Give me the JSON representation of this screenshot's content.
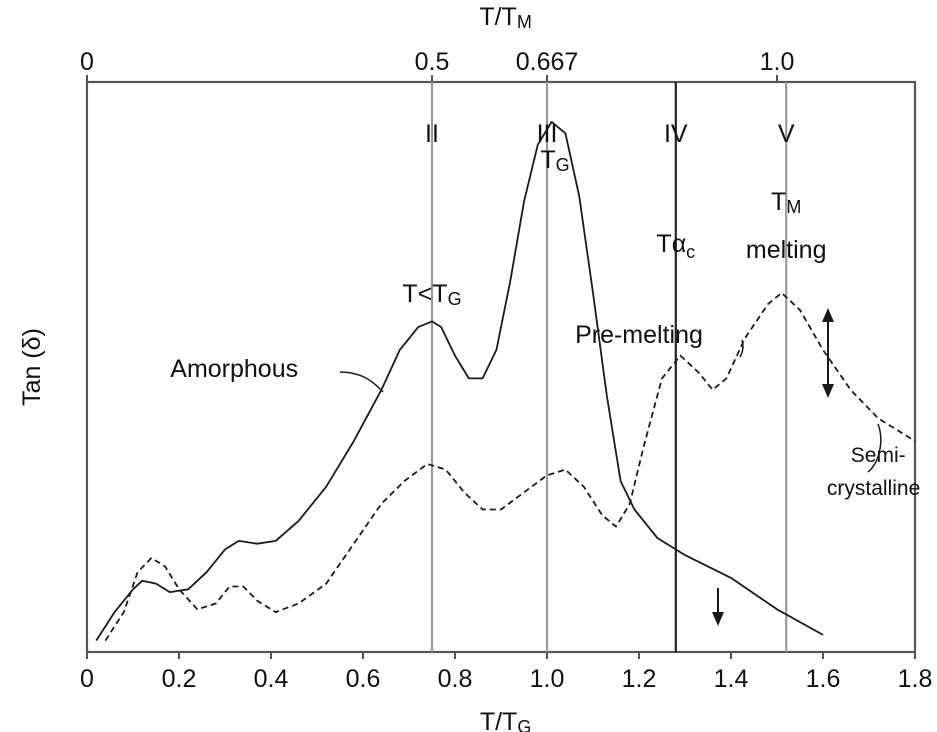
{
  "chart_data": {
    "type": "line",
    "title": "",
    "xlabel": "T/TG",
    "x2label": "T/TM",
    "ylabel": "Tan (δ)",
    "xlim": [
      0,
      1.8
    ],
    "x_ticks": [
      "0",
      "0.2",
      "0.4",
      "0.6",
      "0.8",
      "1.0",
      "1.2",
      "1.4",
      "1.6",
      "1.8"
    ],
    "x2_ticks": [
      {
        "label": "0",
        "at_x": 0
      },
      {
        "label": "0.5",
        "at_x": 0.75
      },
      {
        "label": "0.667",
        "at_x": 1.0
      },
      {
        "label": "1.0",
        "at_x": 1.5
      }
    ],
    "y_ticks_shown": false,
    "grid": false,
    "regions": [
      {
        "roman": "II",
        "x": 0.75
      },
      {
        "roman": "III",
        "sub": "TG",
        "x": 1.0
      },
      {
        "roman": "IV",
        "x": 1.28
      },
      {
        "roman": "V",
        "x": 1.52
      }
    ],
    "series": [
      {
        "name": "Amorphous",
        "style": "solid",
        "points": [
          [
            0.02,
            0.02
          ],
          [
            0.06,
            0.07
          ],
          [
            0.1,
            0.11
          ],
          [
            0.12,
            0.125
          ],
          [
            0.15,
            0.12
          ],
          [
            0.18,
            0.105
          ],
          [
            0.22,
            0.11
          ],
          [
            0.26,
            0.14
          ],
          [
            0.3,
            0.18
          ],
          [
            0.33,
            0.195
          ],
          [
            0.37,
            0.19
          ],
          [
            0.41,
            0.195
          ],
          [
            0.46,
            0.23
          ],
          [
            0.52,
            0.29
          ],
          [
            0.58,
            0.37
          ],
          [
            0.64,
            0.46
          ],
          [
            0.68,
            0.53
          ],
          [
            0.72,
            0.57
          ],
          [
            0.75,
            0.58
          ],
          [
            0.77,
            0.57
          ],
          [
            0.8,
            0.52
          ],
          [
            0.83,
            0.48
          ],
          [
            0.86,
            0.48
          ],
          [
            0.89,
            0.53
          ],
          [
            0.92,
            0.65
          ],
          [
            0.95,
            0.79
          ],
          [
            0.98,
            0.89
          ],
          [
            1.01,
            0.93
          ],
          [
            1.04,
            0.91
          ],
          [
            1.07,
            0.8
          ],
          [
            1.1,
            0.63
          ],
          [
            1.13,
            0.45
          ],
          [
            1.16,
            0.3
          ],
          [
            1.19,
            0.25
          ],
          [
            1.24,
            0.2
          ],
          [
            1.3,
            0.17
          ],
          [
            1.4,
            0.13
          ],
          [
            1.5,
            0.075
          ],
          [
            1.6,
            0.03
          ]
        ]
      },
      {
        "name": "Semi-crystalline",
        "style": "dashed",
        "points": [
          [
            0.04,
            0.02
          ],
          [
            0.08,
            0.07
          ],
          [
            0.11,
            0.14
          ],
          [
            0.14,
            0.165
          ],
          [
            0.17,
            0.15
          ],
          [
            0.2,
            0.11
          ],
          [
            0.24,
            0.075
          ],
          [
            0.28,
            0.085
          ],
          [
            0.31,
            0.115
          ],
          [
            0.34,
            0.115
          ],
          [
            0.37,
            0.09
          ],
          [
            0.41,
            0.07
          ],
          [
            0.46,
            0.085
          ],
          [
            0.52,
            0.12
          ],
          [
            0.58,
            0.19
          ],
          [
            0.64,
            0.26
          ],
          [
            0.69,
            0.3
          ],
          [
            0.74,
            0.33
          ],
          [
            0.78,
            0.32
          ],
          [
            0.82,
            0.28
          ],
          [
            0.86,
            0.25
          ],
          [
            0.9,
            0.25
          ],
          [
            0.95,
            0.28
          ],
          [
            1.0,
            0.31
          ],
          [
            1.04,
            0.32
          ],
          [
            1.08,
            0.29
          ],
          [
            1.12,
            0.24
          ],
          [
            1.15,
            0.22
          ],
          [
            1.18,
            0.26
          ],
          [
            1.21,
            0.36
          ],
          [
            1.25,
            0.48
          ],
          [
            1.29,
            0.52
          ],
          [
            1.33,
            0.49
          ],
          [
            1.36,
            0.46
          ],
          [
            1.39,
            0.48
          ],
          [
            1.43,
            0.55
          ],
          [
            1.48,
            0.61
          ],
          [
            1.51,
            0.63
          ],
          [
            1.55,
            0.6
          ],
          [
            1.6,
            0.53
          ],
          [
            1.66,
            0.46
          ],
          [
            1.72,
            0.41
          ],
          [
            1.8,
            0.37
          ]
        ]
      }
    ],
    "annotations": {
      "amorphous": "Amorphous",
      "t_lt_tg": "T<TG",
      "tg": "TG",
      "t_alpha_c": "Tαc",
      "tm": "TM",
      "melting": "melting",
      "pre_melting": "Pre-melting",
      "semi_line1": "Semi-",
      "semi_line2": "crystalline"
    }
  }
}
